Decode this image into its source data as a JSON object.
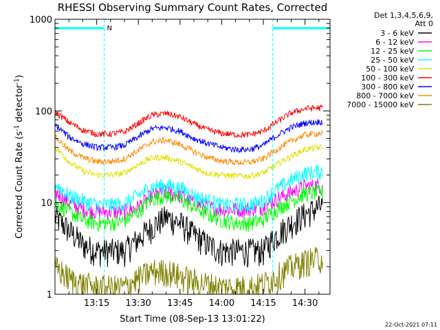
{
  "chart_data": {
    "type": "line",
    "title": "RHESSI Observing Summary Count Rates, Corrected",
    "xlabel": "Start Time (08-Sep-13 13:01:22)",
    "ylabel": "Corrected Count Rate (s⁻¹ detector⁻¹)",
    "ylabel_main": "Corrected Count Rate (s",
    "ylabel_sup1": "-1",
    "ylabel_mid": " detector",
    "ylabel_sup2": "-1",
    "ylabel_end": ")",
    "y_scale": "log",
    "ylim": [
      1,
      1000
    ],
    "xlim_minutes": [
      0,
      99
    ],
    "x_tick_labels": [
      "13:15",
      "13:30",
      "13:45",
      "14:00",
      "14:15",
      "14:30"
    ],
    "x_tick_minutes": [
      15,
      30,
      45,
      60,
      75,
      90
    ],
    "y_tick_labels": [
      "1",
      "10",
      "100",
      "1000"
    ],
    "y_tick_values": [
      1,
      10,
      100,
      1000
    ],
    "legend_title": [
      "Det 1,3,4,5,6,9,",
      "Att 0"
    ],
    "legend_position": "right",
    "timestamp": "22-Oct-2021 07:11",
    "flag_label": "N",
    "flag_color": "#00ffff",
    "night_intervals_minutes": [
      [
        0,
        17.7
      ],
      [
        78.4,
        99
      ]
    ],
    "series": [
      {
        "name": "3 - 6 keV",
        "color": "#000000",
        "x": [
          0,
          5,
          10,
          15,
          20,
          25,
          30,
          35,
          40,
          45,
          50,
          55,
          60,
          65,
          70,
          75,
          80,
          85,
          90,
          95
        ],
        "values": [
          7,
          5,
          3.5,
          3,
          3,
          3,
          4,
          5.5,
          7,
          6,
          4.5,
          3.5,
          3,
          3,
          3,
          3,
          4.5,
          6,
          7.5,
          9
        ]
      },
      {
        "name": "6 - 12 keV",
        "color": "#ff00ff",
        "x": [
          0,
          5,
          10,
          15,
          20,
          25,
          30,
          35,
          40,
          45,
          50,
          55,
          60,
          65,
          70,
          75,
          80,
          85,
          90,
          95
        ],
        "values": [
          13,
          10,
          8.5,
          8,
          8,
          8,
          9,
          12,
          13,
          12,
          10,
          9,
          8.5,
          8.5,
          8.5,
          9,
          11,
          13,
          15,
          15.5
        ]
      },
      {
        "name": "12 - 25 keV",
        "color": "#00ff00",
        "x": [
          0,
          5,
          10,
          15,
          20,
          25,
          30,
          35,
          40,
          45,
          50,
          55,
          60,
          65,
          70,
          75,
          80,
          85,
          90,
          95
        ],
        "values": [
          10,
          8,
          6.5,
          6,
          6,
          6.3,
          8,
          11,
          12,
          11,
          9,
          7.5,
          6.5,
          6,
          6,
          6.5,
          8.5,
          10.5,
          12.5,
          13
        ]
      },
      {
        "name": "25 - 50 keV",
        "color": "#00ffff",
        "x": [
          0,
          5,
          10,
          15,
          20,
          25,
          30,
          35,
          40,
          45,
          50,
          55,
          60,
          65,
          70,
          75,
          80,
          85,
          90,
          95
        ],
        "values": [
          16,
          12,
          10.5,
          9.5,
          9.5,
          9.8,
          12,
          15,
          15.5,
          14.5,
          12,
          10.5,
          9.5,
          9.5,
          9.5,
          10.5,
          14,
          17.5,
          21,
          22
        ]
      },
      {
        "name": "50 - 100 keV",
        "color": "#e0e000",
        "x": [
          0,
          5,
          10,
          15,
          20,
          25,
          30,
          35,
          40,
          45,
          50,
          55,
          60,
          65,
          70,
          75,
          80,
          85,
          90,
          95
        ],
        "values": [
          40,
          28,
          22,
          20,
          20,
          21,
          26,
          31,
          31,
          28,
          24,
          21,
          20,
          19.5,
          19.5,
          21,
          26,
          32,
          38,
          40
        ]
      },
      {
        "name": "100 - 300 keV",
        "color": "#ff0000",
        "x": [
          0,
          5,
          10,
          15,
          20,
          25,
          30,
          35,
          40,
          45,
          50,
          55,
          60,
          65,
          70,
          75,
          80,
          85,
          90,
          95
        ],
        "values": [
          97,
          75,
          62,
          56,
          56,
          59,
          73,
          90,
          94,
          86,
          72,
          62,
          57,
          55,
          55,
          60,
          76,
          95,
          106,
          108
        ]
      },
      {
        "name": "300 - 800 keV",
        "color": "#0000ff",
        "x": [
          0,
          5,
          10,
          15,
          20,
          25,
          30,
          35,
          40,
          45,
          50,
          55,
          60,
          65,
          70,
          75,
          80,
          85,
          90,
          95
        ],
        "values": [
          70,
          52,
          44,
          40,
          40,
          42,
          52,
          64,
          66,
          60,
          50,
          44,
          40,
          38,
          38,
          42,
          54,
          66,
          74,
          76
        ]
      },
      {
        "name": "800 - 7000 keV",
        "color": "#ff8800",
        "x": [
          0,
          5,
          10,
          15,
          20,
          25,
          30,
          35,
          40,
          45,
          50,
          55,
          60,
          65,
          70,
          75,
          80,
          85,
          90,
          95
        ],
        "values": [
          52,
          37,
          31,
          28,
          28,
          30,
          37,
          46,
          48,
          43,
          36,
          31,
          28.5,
          27.5,
          27.5,
          30,
          38,
          47,
          55,
          57
        ]
      },
      {
        "name": "7000 - 15000 keV",
        "color": "#808000",
        "x": [
          0,
          5,
          10,
          15,
          20,
          25,
          30,
          35,
          40,
          45,
          50,
          55,
          60,
          65,
          70,
          75,
          80,
          85,
          90,
          95
        ],
        "values": [
          2,
          1.5,
          1.3,
          1.2,
          1.2,
          1.2,
          1.5,
          1.8,
          1.8,
          1.6,
          1.4,
          1.3,
          1.2,
          1.2,
          1.2,
          1.3,
          1.6,
          2,
          2.3,
          2.5
        ]
      }
    ]
  }
}
